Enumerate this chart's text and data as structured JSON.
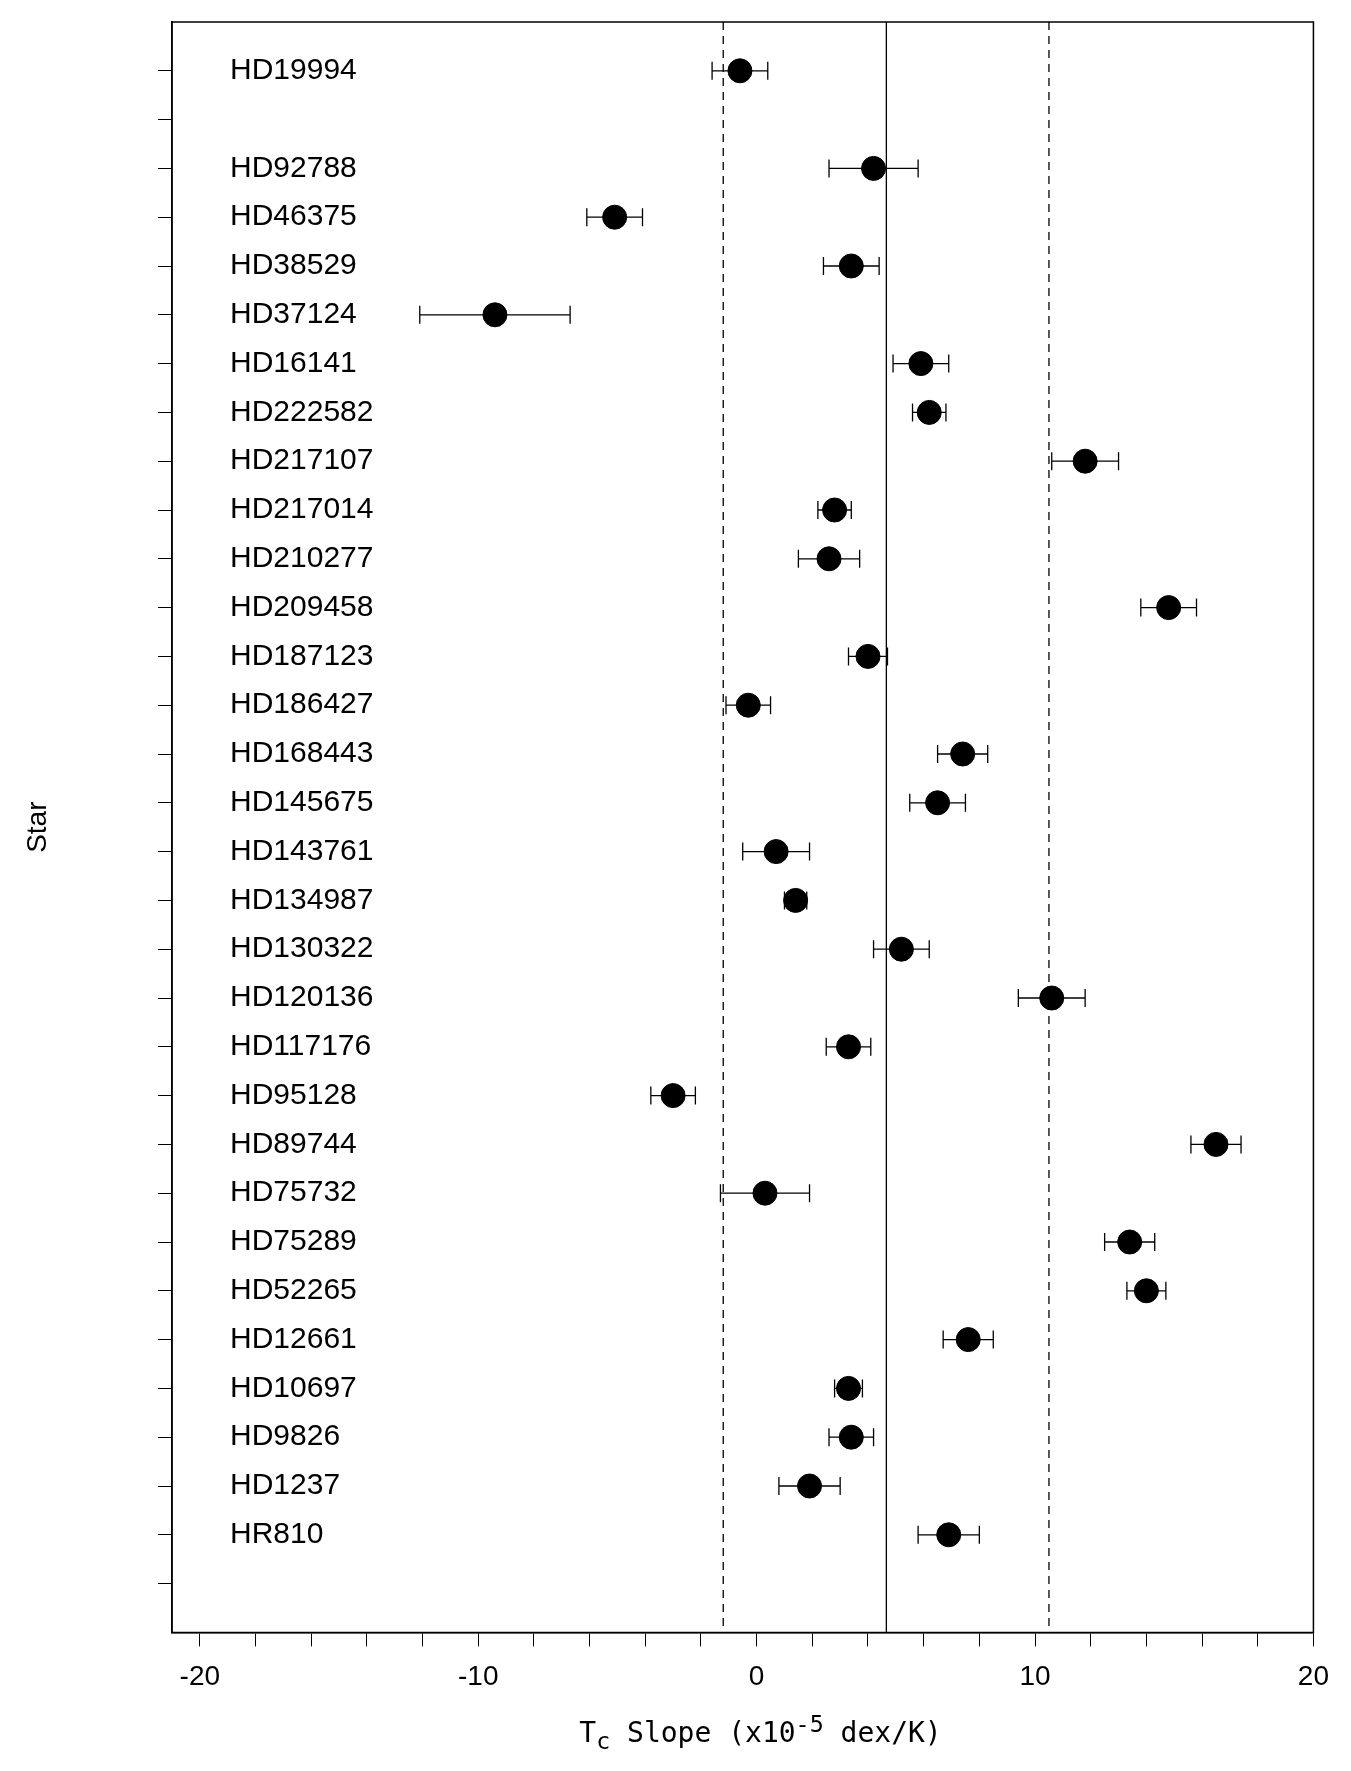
{
  "chart_data": {
    "type": "scatter",
    "xlabel": "T$_{c}$ Slope (x10$^{-5}$ dex/K)",
    "ylabel": "Star",
    "categories": [
      "HD19994",
      null,
      "HD92788",
      "HD46375",
      "HD38529",
      "HD37124",
      "HD16141",
      "HD222582",
      "HD217107",
      "HD217014",
      "HD210277",
      "HD209458",
      "HD187123",
      "HD186427",
      "HD168443",
      "HD145675",
      "HD143761",
      "HD134987",
      "HD130322",
      "HD120136",
      "HD117176",
      "HD95128",
      "HD89744",
      "HD75732",
      "HD75289",
      "HD52265",
      "HD12661",
      "HD10697",
      "HD9826",
      "HD1237",
      "HR810",
      null
    ],
    "orientation": "horizontal",
    "values": [
      -0.6,
      null,
      4.2,
      -5.1,
      3.4,
      -9.4,
      5.9,
      6.2,
      11.8,
      2.8,
      2.6,
      14.8,
      4.0,
      -0.3,
      7.4,
      6.5,
      0.7,
      1.4,
      5.2,
      10.6,
      3.3,
      -3.0,
      16.5,
      0.3,
      13.4,
      14.0,
      7.6,
      3.3,
      3.4,
      1.9,
      6.9,
      null
    ],
    "errors": [
      1.0,
      null,
      1.6,
      1.0,
      1.0,
      2.7,
      1.0,
      0.6,
      1.2,
      0.6,
      1.1,
      1.0,
      0.7,
      0.8,
      0.9,
      1.0,
      1.2,
      0.4,
      1.0,
      1.2,
      0.8,
      0.8,
      0.9,
      1.6,
      0.9,
      0.7,
      0.9,
      0.5,
      0.8,
      1.1,
      1.1,
      null
    ],
    "color": "#000000",
    "marker": "circle",
    "legend": false,
    "grid": false,
    "xlim": [
      -21,
      20
    ],
    "xticks": [
      -20,
      {
        "value": -18,
        "label": null
      },
      {
        "value": -16,
        "label": null
      },
      {
        "value": -14,
        "label": null
      },
      {
        "value": -12,
        "label": null
      },
      -10,
      {
        "value": -8,
        "label": null
      },
      {
        "value": -6,
        "label": null
      },
      {
        "value": -4,
        "label": null
      },
      {
        "value": -2,
        "label": null
      },
      0,
      {
        "value": 2,
        "label": null
      },
      {
        "value": 4,
        "label": null
      },
      {
        "value": 6,
        "label": null
      },
      {
        "value": 8,
        "label": null
      },
      10,
      {
        "value": 12,
        "label": null
      },
      {
        "value": 14,
        "label": null
      },
      {
        "value": 16,
        "label": null
      },
      {
        "value": 18,
        "label": null
      },
      20
    ],
    "ref_lines": [
      {
        "axis": "x",
        "value": 4.66,
        "color": "#000000",
        "line_style": "solid"
      },
      {
        "axis": "x",
        "value": -1.2,
        "color": "#000000",
        "line_style": "dashed"
      },
      {
        "axis": "x",
        "value": 10.5,
        "color": "#000000",
        "line_style": "dashed"
      }
    ]
  }
}
